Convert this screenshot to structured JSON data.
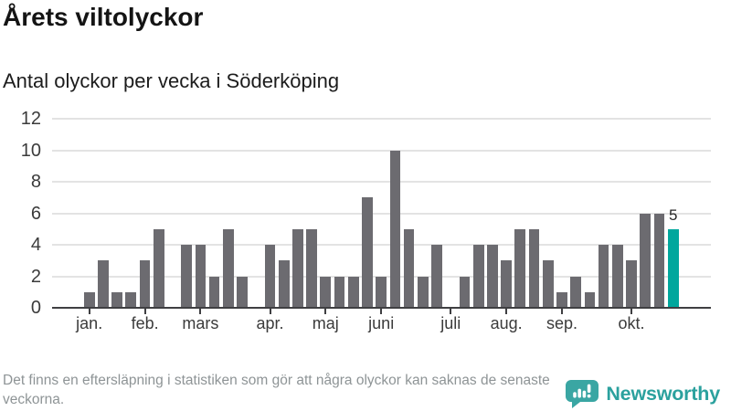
{
  "title": "Årets viltolyckor",
  "subtitle": "Antal olyckor per vecka i Söderköping",
  "chart_data": {
    "type": "bar",
    "title": "Årets viltolyckor",
    "subtitle": "Antal olyckor per vecka i Söderköping",
    "x_unit": "vecka",
    "values": [
      1,
      3,
      1,
      1,
      3,
      5,
      0,
      4,
      4,
      2,
      5,
      2,
      0,
      4,
      3,
      5,
      5,
      2,
      2,
      2,
      7,
      2,
      10,
      5,
      2,
      4,
      0,
      2,
      4,
      4,
      3,
      5,
      5,
      3,
      1,
      2,
      1,
      4,
      4,
      3,
      6,
      6,
      5
    ],
    "weeks_shown": 43,
    "ylim": [
      0,
      12
    ],
    "yticks": [
      0,
      2,
      4,
      6,
      8,
      10,
      12
    ],
    "grid": true,
    "month_ticks": [
      {
        "label": "jan.",
        "week": 1
      },
      {
        "label": "feb.",
        "week": 5
      },
      {
        "label": "mars",
        "week": 9
      },
      {
        "label": "apr.",
        "week": 14
      },
      {
        "label": "maj",
        "week": 18
      },
      {
        "label": "juni",
        "week": 22
      },
      {
        "label": "juli",
        "week": 27
      },
      {
        "label": "aug.",
        "week": 31
      },
      {
        "label": "sep.",
        "week": 35
      },
      {
        "label": "okt.",
        "week": 40
      }
    ],
    "highlight_last_bar": true,
    "last_bar_label": "5",
    "colors": {
      "bar": "#6c6b70",
      "highlight": "#00a79d",
      "gridline": "#e3e3e3",
      "axis": "#3f3f42"
    }
  },
  "footer": {
    "note": "Det finns en eftersläpning i statistiken som gör att några olyckor kan saknas de senaste veckorna.",
    "brand": "Newsworthy",
    "brand_color": "#2ba19e",
    "logo_icon": "newsworthy-speech-bubble-bar-chart-icon"
  }
}
